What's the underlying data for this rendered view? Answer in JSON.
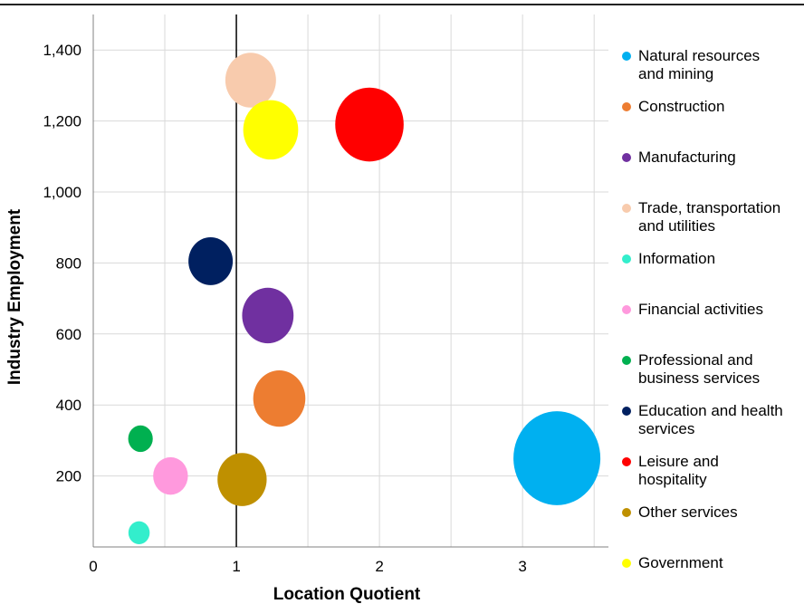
{
  "chart_data": {
    "type": "bubble",
    "xlabel": "Location Quotient",
    "ylabel": "Industry Employment",
    "xlim": [
      0,
      3.6
    ],
    "ylim": [
      0,
      1500
    ],
    "xticks": [
      0,
      1,
      2,
      3
    ],
    "yticks": [
      200,
      400,
      600,
      800,
      1000,
      1200,
      1400
    ],
    "ytick_labels": [
      "200",
      "400",
      "600",
      "800",
      "1,000",
      "1,200",
      "1,400"
    ],
    "reference_line_x": 1,
    "grid": true,
    "legend_position": "right",
    "series": [
      {
        "name": "Natural resources and mining",
        "x": 3.24,
        "y": 250,
        "size": 100,
        "color": "#00b0f0"
      },
      {
        "name": "Construction",
        "x": 1.3,
        "y": 418,
        "size": 36,
        "color": "#ed7d31"
      },
      {
        "name": "Manufacturing",
        "x": 1.22,
        "y": 652,
        "size": 35,
        "color": "#7030a0"
      },
      {
        "name": "Trade, transportation and utilities",
        "x": 1.1,
        "y": 1315,
        "size": 34,
        "color": "#f8cbad"
      },
      {
        "name": "Information",
        "x": 0.32,
        "y": 40,
        "size": 6,
        "color": "#33eecc"
      },
      {
        "name": "Financial activities",
        "x": 0.54,
        "y": 200,
        "size": 16,
        "color": "#ff99dd"
      },
      {
        "name": "Professional and business services",
        "x": 0.33,
        "y": 305,
        "size": 8,
        "color": "#00b050"
      },
      {
        "name": "Education and health services",
        "x": 0.82,
        "y": 805,
        "size": 26,
        "color": "#002060"
      },
      {
        "name": "Leisure and hospitality",
        "x": 1.93,
        "y": 1190,
        "size": 62,
        "color": "#ff0000"
      },
      {
        "name": "Other services",
        "x": 1.04,
        "y": 190,
        "size": 32,
        "color": "#bf9000"
      },
      {
        "name": "Government",
        "x": 1.24,
        "y": 1175,
        "size": 40,
        "color": "#ffff00"
      }
    ]
  },
  "legend": {
    "items": [
      {
        "label": "Natural resources and mining",
        "lines": [
          "Natural resources",
          "and mining"
        ],
        "color": "#00b0f0"
      },
      {
        "label": "Construction",
        "lines": [
          "Construction"
        ],
        "color": "#ed7d31"
      },
      {
        "label": "Manufacturing",
        "lines": [
          "Manufacturing"
        ],
        "color": "#7030a0"
      },
      {
        "label": "Trade, transportation and utilities",
        "lines": [
          "Trade, transportation",
          "and utilities"
        ],
        "color": "#f8cbad"
      },
      {
        "label": "Information",
        "lines": [
          "Information"
        ],
        "color": "#33eecc"
      },
      {
        "label": "Financial activities",
        "lines": [
          "Financial activities"
        ],
        "color": "#ff99dd"
      },
      {
        "label": "Professional and business services",
        "lines": [
          "Professional and",
          "business services"
        ],
        "color": "#00b050"
      },
      {
        "label": "Education and health services",
        "lines": [
          "Education and health",
          "services"
        ],
        "color": "#002060"
      },
      {
        "label": "Leisure and hospitality",
        "lines": [
          "Leisure and",
          "hospitality"
        ],
        "color": "#ff0000"
      },
      {
        "label": "Other services",
        "lines": [
          "Other services"
        ],
        "color": "#bf9000"
      },
      {
        "label": "Government",
        "lines": [
          "Government"
        ],
        "color": "#ffff00"
      }
    ]
  }
}
